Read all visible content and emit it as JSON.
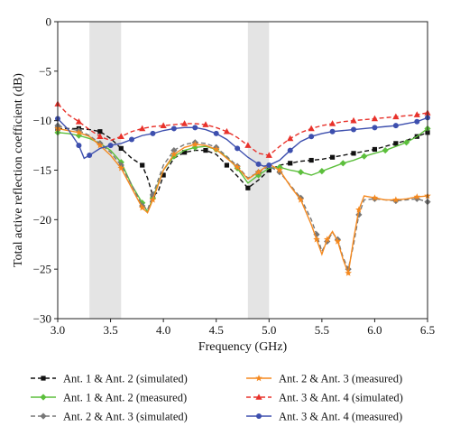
{
  "chart_data": {
    "type": "line",
    "xlabel": "Frequency (GHz)",
    "ylabel": "Total active reflection coefficient (dB)",
    "xlim": [
      3.0,
      6.5
    ],
    "ylim": [
      -30,
      0
    ],
    "xticks": [
      "3.0",
      "3.5",
      "4.0",
      "4.5",
      "5.0",
      "5.5",
      "6.0",
      "6.5"
    ],
    "yticks": [
      "0",
      "−5",
      "−10",
      "−15",
      "−20",
      "−25",
      "−30"
    ],
    "grid": false,
    "legend_position": "bottom",
    "shaded_bands": [
      [
        3.3,
        3.6
      ],
      [
        4.8,
        5.0
      ]
    ],
    "series": [
      {
        "name": "Ant. 1 & Ant. 2 (simulated)",
        "color": "#111111",
        "marker": "square",
        "dash": true,
        "x": [
          3.0,
          3.1,
          3.2,
          3.3,
          3.4,
          3.5,
          3.6,
          3.7,
          3.8,
          3.85,
          3.9,
          3.95,
          4.0,
          4.1,
          4.2,
          4.3,
          4.4,
          4.5,
          4.6,
          4.7,
          4.8,
          4.9,
          5.0,
          5.1,
          5.2,
          5.3,
          5.4,
          5.5,
          5.6,
          5.7,
          5.8,
          5.9,
          6.0,
          6.1,
          6.2,
          6.3,
          6.4,
          6.5
        ],
        "y": [
          -10.8,
          -10.8,
          -10.8,
          -10.9,
          -11.1,
          -11.8,
          -12.8,
          -13.8,
          -14.5,
          -15.8,
          -17.6,
          -17.2,
          -15.5,
          -13.8,
          -13.2,
          -13.0,
          -13.0,
          -13.4,
          -14.5,
          -15.6,
          -16.8,
          -16.0,
          -15.0,
          -14.5,
          -14.3,
          -14.1,
          -14.0,
          -13.9,
          -13.7,
          -13.5,
          -13.3,
          -13.1,
          -12.9,
          -12.6,
          -12.3,
          -12.0,
          -11.6,
          -11.2
        ]
      },
      {
        "name": "Ant. 1 & Ant. 2 (measured)",
        "color": "#5cbf3c",
        "marker": "diamond",
        "dash": false,
        "x": [
          3.0,
          3.1,
          3.2,
          3.3,
          3.4,
          3.5,
          3.6,
          3.7,
          3.8,
          3.85,
          3.9,
          4.0,
          4.1,
          4.2,
          4.3,
          4.4,
          4.5,
          4.6,
          4.7,
          4.8,
          4.9,
          5.0,
          5.1,
          5.2,
          5.3,
          5.4,
          5.5,
          5.6,
          5.7,
          5.8,
          5.9,
          6.0,
          6.1,
          6.2,
          6.3,
          6.4,
          6.5
        ],
        "y": [
          -11.2,
          -11.3,
          -11.5,
          -11.8,
          -12.3,
          -13.0,
          -14.2,
          -16.5,
          -18.3,
          -19.2,
          -17.8,
          -15.0,
          -13.6,
          -13.0,
          -12.7,
          -12.6,
          -12.9,
          -13.7,
          -14.8,
          -16.3,
          -15.5,
          -14.8,
          -14.7,
          -15.0,
          -15.2,
          -15.5,
          -15.1,
          -14.7,
          -14.3,
          -14.0,
          -13.6,
          -13.3,
          -13.0,
          -12.6,
          -12.2,
          -11.6,
          -10.8
        ]
      },
      {
        "name": "Ant. 2 & Ant. 3 (simulated)",
        "color": "#777777",
        "marker": "diamond",
        "dash": true,
        "x": [
          3.0,
          3.1,
          3.2,
          3.3,
          3.4,
          3.5,
          3.6,
          3.7,
          3.8,
          3.85,
          3.9,
          4.0,
          4.1,
          4.2,
          4.3,
          4.4,
          4.5,
          4.6,
          4.7,
          4.8,
          4.9,
          5.0,
          5.1,
          5.2,
          5.3,
          5.4,
          5.45,
          5.5,
          5.55,
          5.6,
          5.65,
          5.7,
          5.75,
          5.8,
          5.85,
          5.9,
          6.0,
          6.1,
          6.2,
          6.3,
          6.4,
          6.5
        ],
        "y": [
          -10.5,
          -10.8,
          -11.0,
          -11.5,
          -12.3,
          -13.2,
          -14.5,
          -16.5,
          -18.6,
          -19.0,
          -17.5,
          -14.5,
          -13.0,
          -12.4,
          -12.2,
          -12.3,
          -12.7,
          -13.6,
          -14.6,
          -15.8,
          -15.2,
          -14.6,
          -15.2,
          -16.5,
          -17.8,
          -20.0,
          -21.5,
          -23.2,
          -22.2,
          -21.3,
          -22.0,
          -23.8,
          -25.0,
          -22.5,
          -19.5,
          -18.0,
          -17.9,
          -18.0,
          -18.1,
          -18.0,
          -17.9,
          -18.2
        ]
      },
      {
        "name": "Ant. 2 & Ant. 3 (measured)",
        "color": "#f5891f",
        "marker": "star",
        "dash": false,
        "x": [
          3.0,
          3.1,
          3.2,
          3.3,
          3.4,
          3.5,
          3.6,
          3.7,
          3.8,
          3.85,
          3.9,
          4.0,
          4.1,
          4.2,
          4.3,
          4.4,
          4.5,
          4.6,
          4.7,
          4.8,
          4.9,
          5.0,
          5.1,
          5.2,
          5.3,
          5.4,
          5.45,
          5.5,
          5.55,
          5.6,
          5.65,
          5.7,
          5.75,
          5.8,
          5.85,
          5.9,
          6.0,
          6.1,
          6.2,
          6.3,
          6.4,
          6.5
        ],
        "y": [
          -10.8,
          -11.0,
          -11.2,
          -11.6,
          -12.5,
          -13.5,
          -14.8,
          -16.8,
          -18.8,
          -19.3,
          -18.0,
          -15.0,
          -13.4,
          -12.7,
          -12.4,
          -12.5,
          -12.9,
          -13.8,
          -14.7,
          -15.9,
          -15.2,
          -14.4,
          -15.0,
          -16.6,
          -18.0,
          -20.5,
          -22.0,
          -23.5,
          -22.0,
          -21.2,
          -22.2,
          -24.0,
          -25.4,
          -22.0,
          -19.0,
          -17.6,
          -17.8,
          -18.0,
          -18.0,
          -17.9,
          -17.7,
          -17.6
        ]
      },
      {
        "name": "Ant. 3 & Ant. 4 (simulated)",
        "color": "#e8322b",
        "marker": "triangle",
        "dash": true,
        "x": [
          3.0,
          3.1,
          3.2,
          3.3,
          3.4,
          3.5,
          3.6,
          3.7,
          3.8,
          3.9,
          4.0,
          4.1,
          4.2,
          4.3,
          4.4,
          4.5,
          4.6,
          4.7,
          4.8,
          4.9,
          5.0,
          5.1,
          5.2,
          5.3,
          5.4,
          5.5,
          5.6,
          5.7,
          5.8,
          5.9,
          6.0,
          6.1,
          6.2,
          6.3,
          6.4,
          6.5
        ],
        "y": [
          -8.3,
          -9.4,
          -10.1,
          -10.9,
          -11.6,
          -12.0,
          -11.6,
          -11.1,
          -10.8,
          -10.6,
          -10.5,
          -10.4,
          -10.3,
          -10.3,
          -10.4,
          -10.7,
          -11.1,
          -11.7,
          -12.5,
          -13.3,
          -13.5,
          -12.6,
          -11.8,
          -11.2,
          -10.8,
          -10.5,
          -10.3,
          -10.1,
          -10.0,
          -9.9,
          -9.8,
          -9.7,
          -9.6,
          -9.5,
          -9.4,
          -9.2
        ]
      },
      {
        "name": "Ant. 3 & Ant. 4 (measured)",
        "color": "#3d4fae",
        "marker": "circle",
        "dash": false,
        "x": [
          3.0,
          3.1,
          3.2,
          3.25,
          3.3,
          3.4,
          3.5,
          3.6,
          3.7,
          3.8,
          3.9,
          4.0,
          4.1,
          4.2,
          4.3,
          4.4,
          4.5,
          4.6,
          4.7,
          4.8,
          4.9,
          4.95,
          5.0,
          5.1,
          5.2,
          5.3,
          5.4,
          5.5,
          5.6,
          5.7,
          5.8,
          5.9,
          6.0,
          6.1,
          6.2,
          6.3,
          6.4,
          6.5
        ],
        "y": [
          -9.8,
          -10.9,
          -12.5,
          -13.8,
          -13.5,
          -12.8,
          -12.5,
          -12.3,
          -11.9,
          -11.5,
          -11.3,
          -11.0,
          -10.8,
          -10.7,
          -10.7,
          -10.9,
          -11.3,
          -11.9,
          -12.8,
          -13.7,
          -14.4,
          -14.6,
          -14.5,
          -14.0,
          -13.0,
          -12.1,
          -11.6,
          -11.3,
          -11.1,
          -11.0,
          -10.9,
          -10.8,
          -10.7,
          -10.6,
          -10.5,
          -10.3,
          -10.1,
          -9.7
        ]
      }
    ]
  }
}
